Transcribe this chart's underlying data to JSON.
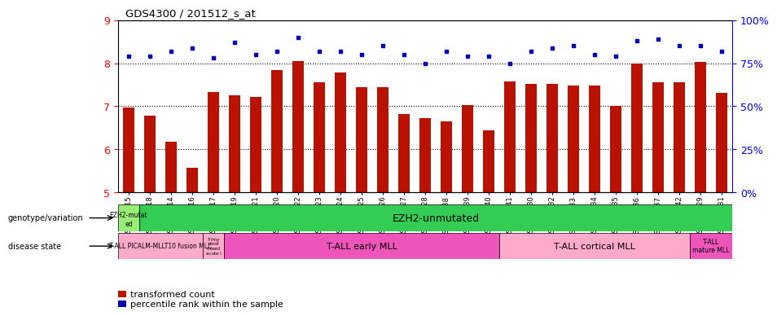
{
  "title": "GDS4300 / 201512_s_at",
  "samples": [
    "GSM759015",
    "GSM759018",
    "GSM759014",
    "GSM759016",
    "GSM759017",
    "GSM759019",
    "GSM759021",
    "GSM759020",
    "GSM759022",
    "GSM759023",
    "GSM759024",
    "GSM759025",
    "GSM759026",
    "GSM759027",
    "GSM759028",
    "GSM759038",
    "GSM759039",
    "GSM759040",
    "GSM759041",
    "GSM759030",
    "GSM759032",
    "GSM759033",
    "GSM759034",
    "GSM759035",
    "GSM759036",
    "GSM759037",
    "GSM759042",
    "GSM759029",
    "GSM759031"
  ],
  "bar_values": [
    6.97,
    6.78,
    6.18,
    5.57,
    7.32,
    7.25,
    7.22,
    7.83,
    8.05,
    7.56,
    7.78,
    7.45,
    7.45,
    6.82,
    6.73,
    6.65,
    7.03,
    6.43,
    7.57,
    7.52,
    7.52,
    7.48,
    7.48,
    7.0,
    8.0,
    7.55,
    7.55,
    8.03,
    7.3
  ],
  "dot_percentiles": [
    79,
    79,
    82,
    84,
    78,
    87,
    80,
    82,
    90,
    82,
    82,
    80,
    85,
    80,
    75,
    82,
    79,
    79,
    75,
    82,
    84,
    85,
    80,
    79,
    88,
    89,
    85,
    85,
    82
  ],
  "ylim_left": [
    5,
    9
  ],
  "ylim_right": [
    0,
    100
  ],
  "yticks_left": [
    5,
    6,
    7,
    8,
    9
  ],
  "yticks_right": [
    0,
    25,
    50,
    75,
    100
  ],
  "bar_color": "#BB1100",
  "dot_color": "#0000BB",
  "background_color": "#ffffff",
  "plot_bg": "#ffffff",
  "genotype_colors": {
    "mutated": "#99EE77",
    "unmutated": "#33CC55"
  },
  "disease_colors": {
    "light": "#FFAACC",
    "dark": "#EE55BB"
  },
  "legend": [
    {
      "color": "#BB1100",
      "label": "transformed count"
    },
    {
      "color": "#0000BB",
      "label": "percentile rank within the sample"
    }
  ]
}
